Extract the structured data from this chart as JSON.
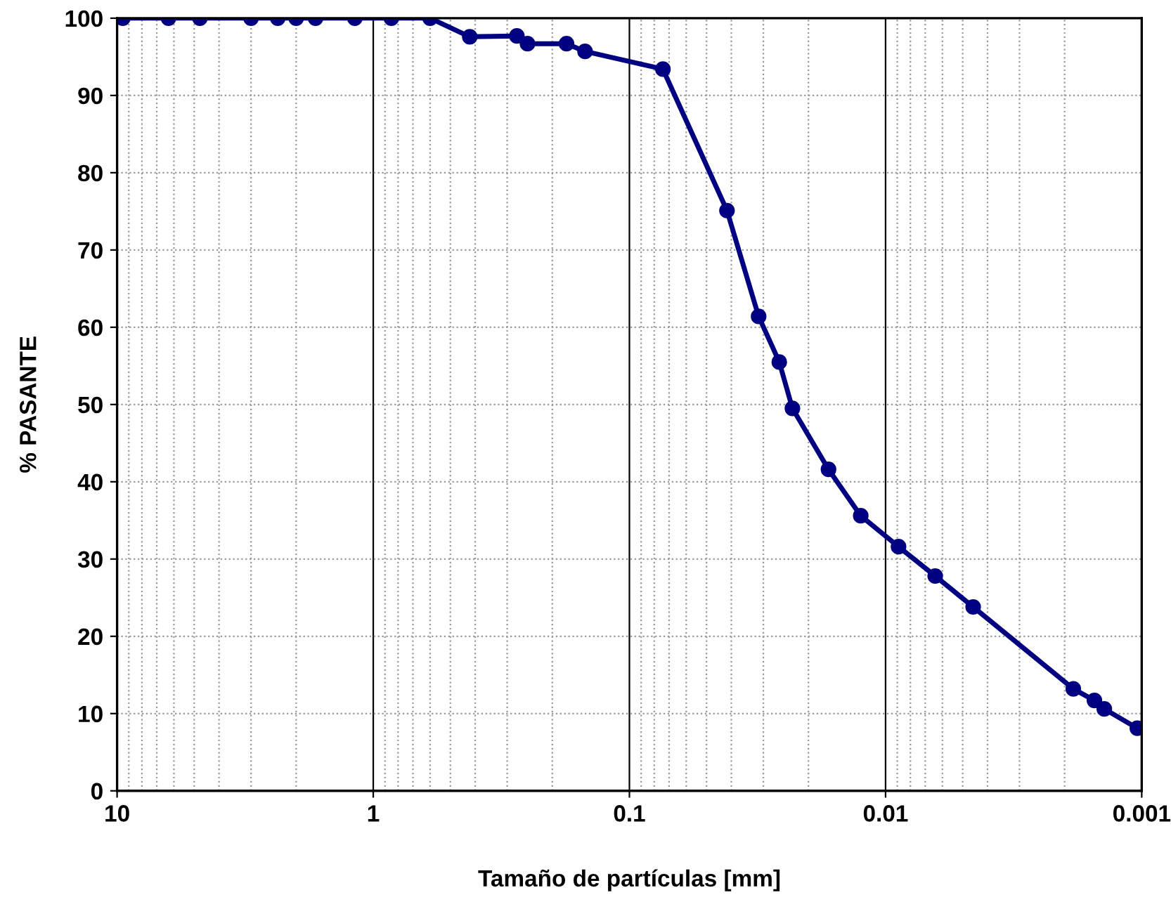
{
  "chart_data": {
    "type": "line",
    "xlabel": "Tamaño de partículas [mm]",
    "ylabel": "% PASANTE",
    "log": "x",
    "marker": "circle",
    "line_style": "solid",
    "grid": true,
    "legend": false,
    "xlim": [
      10,
      0.001
    ],
    "xticks": [
      10,
      1,
      0.1,
      0.01,
      0.001
    ],
    "ylim": [
      0,
      100
    ],
    "yticks": [
      0,
      10,
      20,
      30,
      40,
      50,
      60,
      70,
      80,
      90,
      100
    ],
    "series": [
      {
        "color": "#000080",
        "x": [
          9.5,
          6.3,
          4.75,
          3.0,
          2.36,
          2.0,
          1.68,
          1.18,
          0.85,
          0.6,
          0.42,
          0.275,
          0.25,
          0.176,
          0.149,
          0.074,
          0.0416,
          0.0313,
          0.026,
          0.0231,
          0.0167,
          0.0125,
          0.0089,
          0.0064,
          0.00455,
          0.00185,
          0.00153,
          0.0014,
          0.00104
        ],
        "values": [
          100,
          100,
          100,
          100,
          100,
          100,
          100,
          100,
          100,
          100,
          97.6,
          97.7,
          96.7,
          96.7,
          95.7,
          93.4,
          75.1,
          61.4,
          55.5,
          49.5,
          41.6,
          35.6,
          31.6,
          27.8,
          23.8,
          13.2,
          11.7,
          10.6,
          8.1
        ]
      }
    ]
  }
}
